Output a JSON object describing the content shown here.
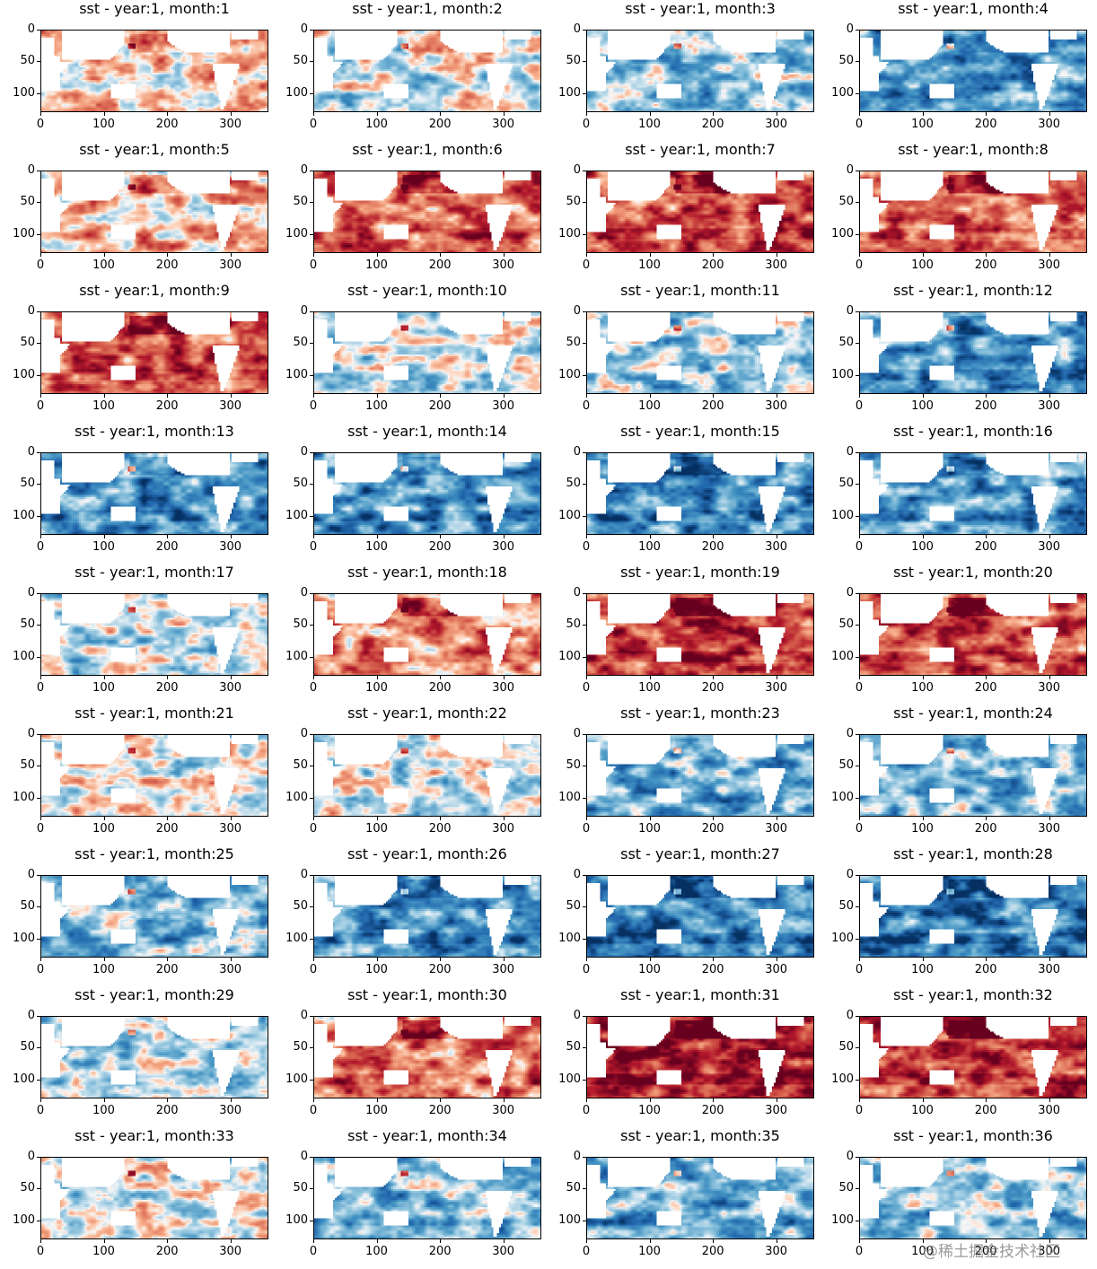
{
  "chart_data": {
    "type": "heatmap",
    "layout": {
      "rows": 9,
      "cols": 4
    },
    "colormap": "RdBu_r",
    "variable": "sst",
    "xlim": [
      0,
      360
    ],
    "ylim_inverted": [
      130,
      0
    ],
    "xticks": [
      "0",
      "100",
      "200",
      "300"
    ],
    "yticks": [
      "0",
      "50",
      "100"
    ],
    "panels": [
      {
        "title": "sst - year:1, month:1",
        "bias": 0.15
      },
      {
        "title": "sst - year:1, month:2",
        "bias": -0.05
      },
      {
        "title": "sst - year:1, month:3",
        "bias": -0.25
      },
      {
        "title": "sst - year:1, month:4",
        "bias": -0.4
      },
      {
        "title": "sst - year:1, month:5",
        "bias": 0.2
      },
      {
        "title": "sst - year:1, month:6",
        "bias": 0.45
      },
      {
        "title": "sst - year:1, month:7",
        "bias": 0.55
      },
      {
        "title": "sst - year:1, month:8",
        "bias": 0.5
      },
      {
        "title": "sst - year:1, month:9",
        "bias": 0.5
      },
      {
        "title": "sst - year:1, month:10",
        "bias": -0.1
      },
      {
        "title": "sst - year:1, month:11",
        "bias": -0.2
      },
      {
        "title": "sst - year:1, month:12",
        "bias": -0.5
      },
      {
        "title": "sst - year:1, month:13",
        "bias": -0.5
      },
      {
        "title": "sst - year:1, month:14",
        "bias": -0.5
      },
      {
        "title": "sst - year:1, month:15",
        "bias": -0.55
      },
      {
        "title": "sst - year:1, month:16",
        "bias": -0.45
      },
      {
        "title": "sst - year:1, month:17",
        "bias": -0.1
      },
      {
        "title": "sst - year:1, month:18",
        "bias": 0.35
      },
      {
        "title": "sst - year:1, month:19",
        "bias": 0.6
      },
      {
        "title": "sst - year:1, month:20",
        "bias": 0.5
      },
      {
        "title": "sst - year:1, month:21",
        "bias": 0.0
      },
      {
        "title": "sst - year:1, month:22",
        "bias": -0.05
      },
      {
        "title": "sst - year:1, month:23",
        "bias": -0.35
      },
      {
        "title": "sst - year:1, month:24",
        "bias": -0.3
      },
      {
        "title": "sst - year:1, month:25",
        "bias": -0.3
      },
      {
        "title": "sst - year:1, month:26",
        "bias": -0.5
      },
      {
        "title": "sst - year:1, month:27",
        "bias": -0.6
      },
      {
        "title": "sst - year:1, month:28",
        "bias": -0.6
      },
      {
        "title": "sst - year:1, month:29",
        "bias": -0.15
      },
      {
        "title": "sst - year:1, month:30",
        "bias": 0.4
      },
      {
        "title": "sst - year:1, month:31",
        "bias": 0.75
      },
      {
        "title": "sst - year:1, month:32",
        "bias": 0.6
      },
      {
        "title": "sst - year:1, month:33",
        "bias": -0.05
      },
      {
        "title": "sst - year:1, month:34",
        "bias": -0.3
      },
      {
        "title": "sst - year:1, month:35",
        "bias": -0.35
      },
      {
        "title": "sst - year:1, month:36",
        "bias": -0.25
      }
    ]
  },
  "watermark": "@稀土掘金技术社区"
}
